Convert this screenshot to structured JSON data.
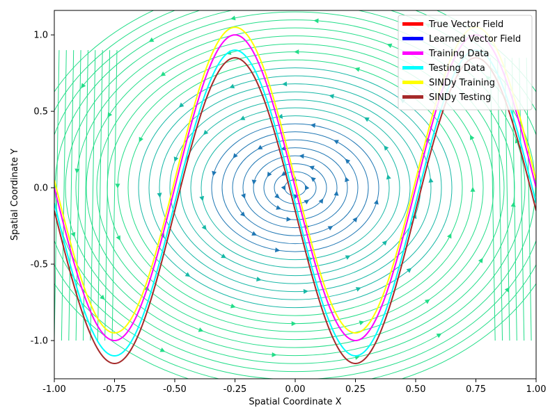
{
  "chart_data": {
    "type": "line",
    "xlabel": "Spatial Coordinate X",
    "ylabel": "Spatial Coordinate Y",
    "xlim": [
      -1.0,
      1.0
    ],
    "ylim": [
      -1.25,
      1.16
    ],
    "x_ticks": [
      "-1.00",
      "-0.75",
      "-0.50",
      "-0.25",
      "0.00",
      "0.25",
      "0.50",
      "0.75",
      "1.00"
    ],
    "x_tick_values": [
      -1.0,
      -0.75,
      -0.5,
      -0.25,
      0.0,
      0.25,
      0.5,
      0.75,
      1.0
    ],
    "y_ticks": [
      "-1.0",
      "-0.5",
      "0.0",
      "0.5",
      "1.0"
    ],
    "y_tick_values": [
      -1.0,
      -0.5,
      0.0,
      0.5,
      1.0
    ],
    "grid": false,
    "legend_position": "top-right",
    "streamplot": {
      "center": [
        0.0,
        0.0
      ],
      "direction": "counterclockwise",
      "colors": [
        "#1f77b4",
        "#17b8a6",
        "#22dd88"
      ]
    },
    "series": [
      {
        "name": "True Vector Field",
        "color": "#ff0000",
        "amplitude": 0,
        "offset": 0,
        "in_plot": false
      },
      {
        "name": "Learned Vector Field",
        "color": "#0000ff",
        "amplitude": 0,
        "offset": 0,
        "in_plot": false
      },
      {
        "name": "Training Data",
        "color": "#ff00ff",
        "amplitude": 1.0,
        "offset": 0.0,
        "in_plot": true
      },
      {
        "name": "Testing Data",
        "color": "#00ffff",
        "amplitude": 1.0,
        "offset": -0.1,
        "in_plot": true
      },
      {
        "name": "SINDy Training",
        "color": "#ffff00",
        "amplitude": 1.0,
        "offset": 0.05,
        "in_plot": true
      },
      {
        "name": "SINDy Testing",
        "color": "#a52a2a",
        "amplitude": 1.0,
        "offset": -0.15,
        "in_plot": true
      }
    ],
    "curve_function": "y = -amplitude * sin(2*pi*x) + offset"
  }
}
